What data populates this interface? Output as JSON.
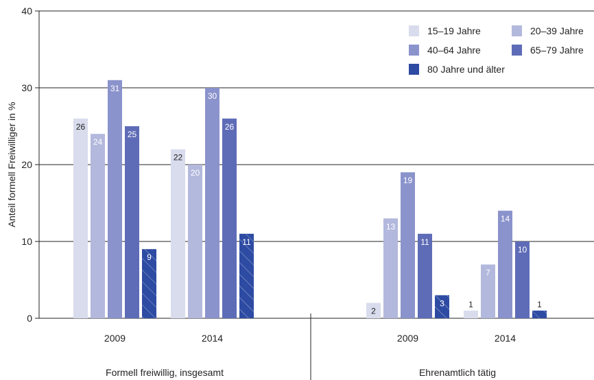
{
  "chart_data": {
    "type": "bar",
    "ylabel": "Anteil formell Freiwilliger in %",
    "xlabel": "",
    "ylim": [
      0,
      40
    ],
    "yticks": [
      "0",
      "10",
      "20",
      "30",
      "40"
    ],
    "grid": true,
    "legend_position": "top-right",
    "series": [
      {
        "name": "15–19 Jahre",
        "color": "#d9dcec",
        "label_color": "#222222",
        "hatched": false
      },
      {
        "name": "20–39 Jahre",
        "color": "#b3b8dd",
        "label_color": "#ffffff",
        "hatched": false
      },
      {
        "name": "40–64 Jahre",
        "color": "#8b93cc",
        "label_color": "#ffffff",
        "hatched": false
      },
      {
        "name": "65–79 Jahre",
        "color": "#5e6cb7",
        "label_color": "#ffffff",
        "hatched": false
      },
      {
        "name": "80 Jahre und älter",
        "color": "#2e4ba3",
        "label_color": "#ffffff",
        "hatched": true
      }
    ],
    "groups": [
      {
        "label": "Formell freiwillig, insgesamt",
        "categories": [
          {
            "label": "2009",
            "values": [
              26,
              24,
              31,
              25,
              9
            ],
            "labels": [
              "26",
              "24",
              "31",
              "25",
              "9"
            ]
          },
          {
            "label": "2014",
            "values": [
              22,
              20,
              30,
              26,
              11
            ],
            "labels": [
              "22",
              "20",
              "30",
              "26",
              "11"
            ]
          }
        ]
      },
      {
        "label": "Ehrenamtlich tätig",
        "categories": [
          {
            "label": "2009",
            "values": [
              2,
              13,
              19,
              11,
              3
            ],
            "labels": [
              "2",
              "13",
              "19",
              "11",
              "3"
            ]
          },
          {
            "label": "2014",
            "values": [
              1,
              7,
              14,
              10,
              1
            ],
            "labels": [
              "1",
              "7",
              "14",
              "10",
              "1"
            ]
          }
        ]
      }
    ]
  }
}
